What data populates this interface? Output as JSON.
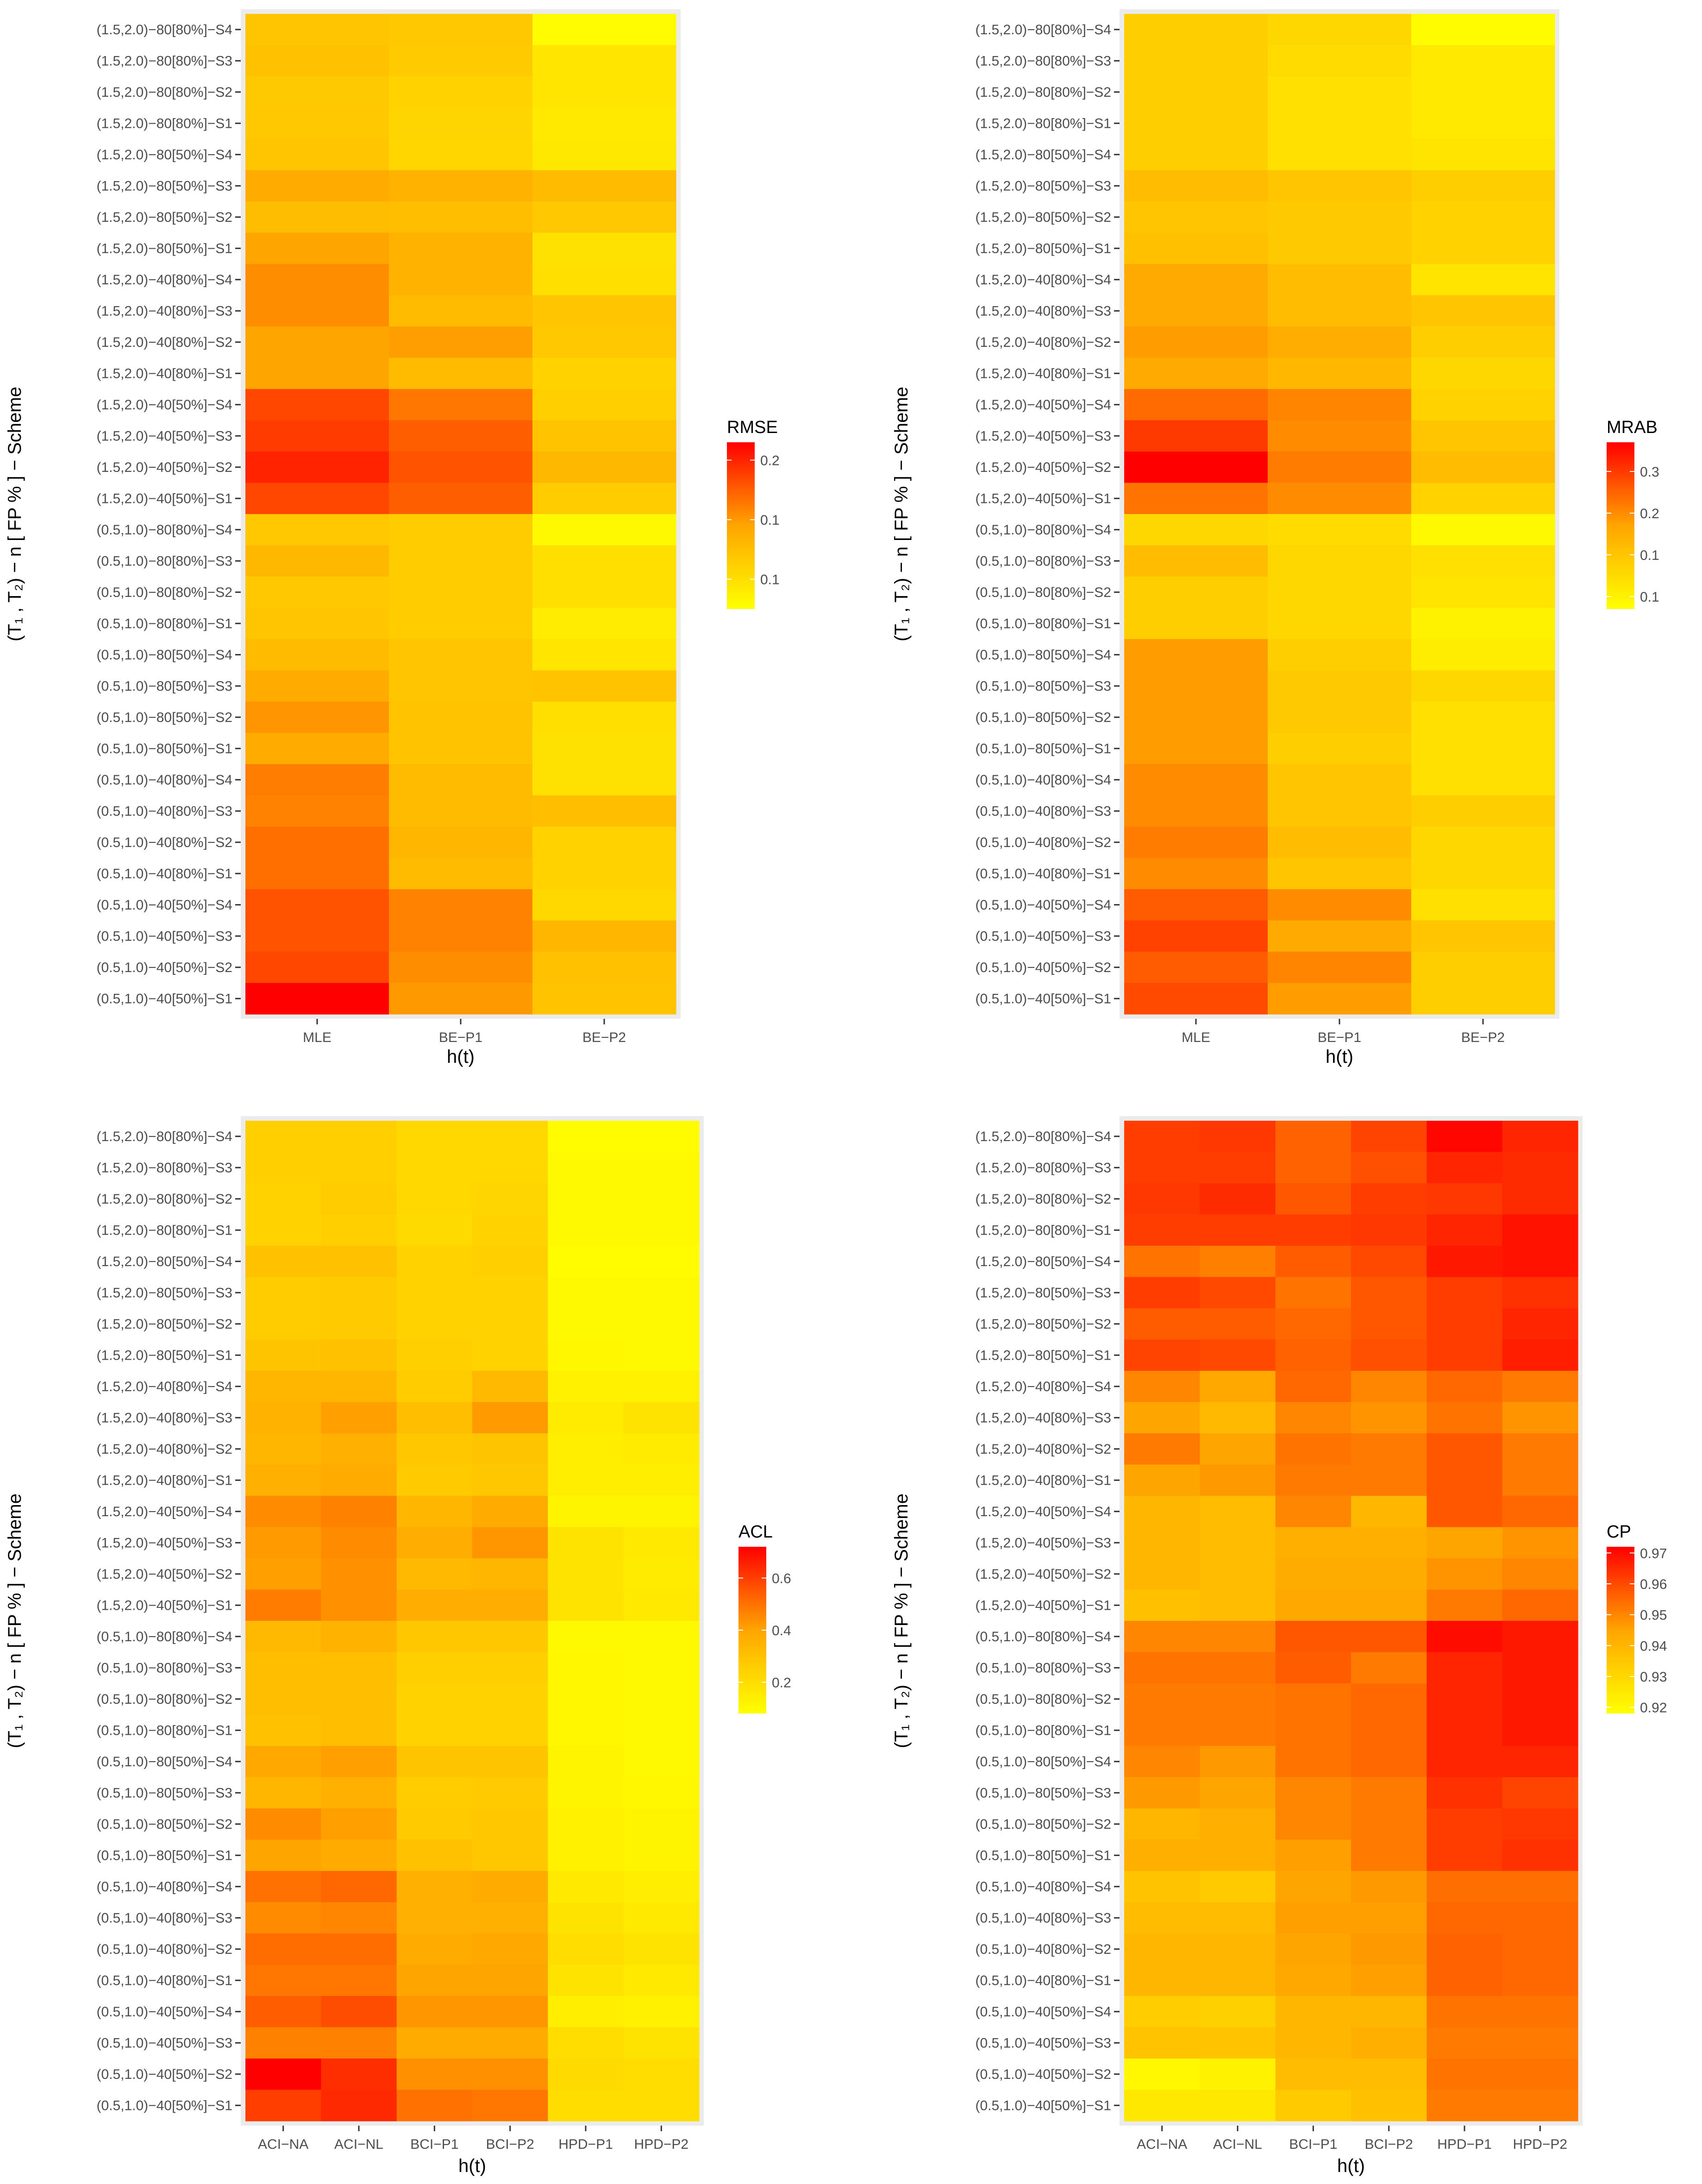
{
  "chart_data": [
    {
      "type": "heatmap",
      "title": "",
      "xlabel": "h(t)",
      "ylabel": "(T₁ , T₂) − n [ FP % ] − Scheme",
      "legend_title": "RMSE",
      "legend_placement": "right",
      "legend_ticks": [
        0.1,
        0.15,
        0.2
      ],
      "value_range": [
        0.075,
        0.215
      ],
      "x_categories": [
        "MLE",
        "BE−P1",
        "BE−P2"
      ],
      "y_categories": [
        "(1.5,2.0)−80[80%]−S4",
        "(1.5,2.0)−80[80%]−S3",
        "(1.5,2.0)−80[80%]−S2",
        "(1.5,2.0)−80[80%]−S1",
        "(1.5,2.0)−80[50%]−S4",
        "(1.5,2.0)−80[50%]−S3",
        "(1.5,2.0)−80[50%]−S2",
        "(1.5,2.0)−80[50%]−S1",
        "(1.5,2.0)−40[80%]−S4",
        "(1.5,2.0)−40[80%]−S3",
        "(1.5,2.0)−40[80%]−S2",
        "(1.5,2.0)−40[80%]−S1",
        "(1.5,2.0)−40[50%]−S4",
        "(1.5,2.0)−40[50%]−S3",
        "(1.5,2.0)−40[50%]−S2",
        "(1.5,2.0)−40[50%]−S1",
        "(0.5,1.0)−80[80%]−S4",
        "(0.5,1.0)−80[80%]−S3",
        "(0.5,1.0)−80[80%]−S2",
        "(0.5,1.0)−80[80%]−S1",
        "(0.5,1.0)−80[50%]−S4",
        "(0.5,1.0)−80[50%]−S3",
        "(0.5,1.0)−80[50%]−S2",
        "(0.5,1.0)−80[50%]−S1",
        "(0.5,1.0)−40[80%]−S4",
        "(0.5,1.0)−40[80%]−S3",
        "(0.5,1.0)−40[80%]−S2",
        "(0.5,1.0)−40[80%]−S1",
        "(0.5,1.0)−40[50%]−S4",
        "(0.5,1.0)−40[50%]−S3",
        "(0.5,1.0)−40[50%]−S2",
        "(0.5,1.0)−40[50%]−S1"
      ],
      "values": [
        [
          0.12,
          0.118,
          0.078
        ],
        [
          0.123,
          0.116,
          0.095
        ],
        [
          0.117,
          0.11,
          0.095
        ],
        [
          0.118,
          0.108,
          0.092
        ],
        [
          0.12,
          0.107,
          0.093
        ],
        [
          0.14,
          0.135,
          0.128
        ],
        [
          0.126,
          0.125,
          0.118
        ],
        [
          0.145,
          0.135,
          0.098
        ],
        [
          0.155,
          0.135,
          0.1
        ],
        [
          0.155,
          0.128,
          0.12
        ],
        [
          0.145,
          0.148,
          0.118
        ],
        [
          0.145,
          0.128,
          0.11
        ],
        [
          0.185,
          0.165,
          0.112
        ],
        [
          0.19,
          0.175,
          0.122
        ],
        [
          0.2,
          0.18,
          0.13
        ],
        [
          0.185,
          0.175,
          0.115
        ],
        [
          0.118,
          0.115,
          0.08
        ],
        [
          0.13,
          0.115,
          0.1
        ],
        [
          0.118,
          0.115,
          0.1
        ],
        [
          0.12,
          0.115,
          0.09
        ],
        [
          0.128,
          0.12,
          0.095
        ],
        [
          0.14,
          0.12,
          0.122
        ],
        [
          0.152,
          0.122,
          0.1
        ],
        [
          0.14,
          0.122,
          0.098
        ],
        [
          0.162,
          0.128,
          0.098
        ],
        [
          0.16,
          0.128,
          0.125
        ],
        [
          0.168,
          0.132,
          0.11
        ],
        [
          0.168,
          0.128,
          0.11
        ],
        [
          0.18,
          0.16,
          0.105
        ],
        [
          0.18,
          0.16,
          0.132
        ],
        [
          0.185,
          0.155,
          0.123
        ],
        [
          0.215,
          0.15,
          0.122
        ]
      ]
    },
    {
      "type": "heatmap",
      "title": "",
      "xlabel": "h(t)",
      "ylabel": "(T₁ , T₂) − n [ FP % ] − Scheme",
      "legend_title": "MRAB",
      "legend_placement": "right",
      "legend_ticks": [
        0.1,
        0.15,
        0.2,
        0.25
      ],
      "value_range": [
        0.085,
        0.285
      ],
      "x_categories": [
        "MLE",
        "BE−P1",
        "BE−P2"
      ],
      "y_categories": [
        "(1.5,2.0)−80[80%]−S4",
        "(1.5,2.0)−80[80%]−S3",
        "(1.5,2.0)−80[80%]−S2",
        "(1.5,2.0)−80[80%]−S1",
        "(1.5,2.0)−80[50%]−S4",
        "(1.5,2.0)−80[50%]−S3",
        "(1.5,2.0)−80[50%]−S2",
        "(1.5,2.0)−80[50%]−S1",
        "(1.5,2.0)−40[80%]−S4",
        "(1.5,2.0)−40[80%]−S3",
        "(1.5,2.0)−40[80%]−S2",
        "(1.5,2.0)−40[80%]−S1",
        "(1.5,2.0)−40[50%]−S4",
        "(1.5,2.0)−40[50%]−S3",
        "(1.5,2.0)−40[50%]−S2",
        "(1.5,2.0)−40[50%]−S1",
        "(0.5,1.0)−80[80%]−S4",
        "(0.5,1.0)−80[80%]−S3",
        "(0.5,1.0)−80[80%]−S2",
        "(0.5,1.0)−80[80%]−S1",
        "(0.5,1.0)−80[50%]−S4",
        "(0.5,1.0)−80[50%]−S3",
        "(0.5,1.0)−80[50%]−S2",
        "(0.5,1.0)−80[50%]−S1",
        "(0.5,1.0)−40[80%]−S4",
        "(0.5,1.0)−40[80%]−S3",
        "(0.5,1.0)−40[80%]−S2",
        "(0.5,1.0)−40[80%]−S1",
        "(0.5,1.0)−40[50%]−S4",
        "(0.5,1.0)−40[50%]−S3",
        "(0.5,1.0)−40[50%]−S2",
        "(0.5,1.0)−40[50%]−S1"
      ],
      "values": [
        [
          0.14,
          0.13,
          0.088
        ],
        [
          0.14,
          0.125,
          0.11
        ],
        [
          0.14,
          0.12,
          0.11
        ],
        [
          0.14,
          0.12,
          0.11
        ],
        [
          0.14,
          0.12,
          0.115
        ],
        [
          0.16,
          0.15,
          0.14
        ],
        [
          0.15,
          0.145,
          0.135
        ],
        [
          0.155,
          0.145,
          0.135
        ],
        [
          0.18,
          0.16,
          0.115
        ],
        [
          0.18,
          0.16,
          0.15
        ],
        [
          0.19,
          0.175,
          0.14
        ],
        [
          0.18,
          0.165,
          0.13
        ],
        [
          0.22,
          0.205,
          0.135
        ],
        [
          0.25,
          0.2,
          0.15
        ],
        [
          0.285,
          0.21,
          0.16
        ],
        [
          0.215,
          0.2,
          0.135
        ],
        [
          0.13,
          0.125,
          0.092
        ],
        [
          0.16,
          0.13,
          0.12
        ],
        [
          0.14,
          0.13,
          0.115
        ],
        [
          0.14,
          0.13,
          0.1
        ],
        [
          0.19,
          0.14,
          0.105
        ],
        [
          0.19,
          0.145,
          0.13
        ],
        [
          0.19,
          0.145,
          0.12
        ],
        [
          0.19,
          0.14,
          0.12
        ],
        [
          0.2,
          0.15,
          0.12
        ],
        [
          0.2,
          0.15,
          0.14
        ],
        [
          0.21,
          0.16,
          0.13
        ],
        [
          0.2,
          0.15,
          0.13
        ],
        [
          0.23,
          0.2,
          0.12
        ],
        [
          0.245,
          0.18,
          0.15
        ],
        [
          0.23,
          0.205,
          0.14
        ],
        [
          0.24,
          0.19,
          0.14
        ]
      ]
    },
    {
      "type": "heatmap",
      "title": "",
      "xlabel": "h(t)",
      "ylabel": "(T₁ , T₂) − n [ FP % ] − Scheme",
      "legend_title": "ACL",
      "legend_placement": "right",
      "legend_ticks": [
        0.2,
        0.4,
        0.6
      ],
      "value_range": [
        0.08,
        0.72
      ],
      "x_categories": [
        "ACI−NA",
        "ACI−NL",
        "BCI−P1",
        "BCI−P2",
        "HPD−P1",
        "HPD−P2"
      ],
      "y_categories": [
        "(1.5,2.0)−80[80%]−S4",
        "(1.5,2.0)−80[80%]−S3",
        "(1.5,2.0)−80[80%]−S2",
        "(1.5,2.0)−80[80%]−S1",
        "(1.5,2.0)−80[50%]−S4",
        "(1.5,2.0)−80[50%]−S3",
        "(1.5,2.0)−80[50%]−S2",
        "(1.5,2.0)−80[50%]−S1",
        "(1.5,2.0)−40[80%]−S4",
        "(1.5,2.0)−40[80%]−S3",
        "(1.5,2.0)−40[80%]−S2",
        "(1.5,2.0)−40[80%]−S1",
        "(1.5,2.0)−40[50%]−S4",
        "(1.5,2.0)−40[50%]−S3",
        "(1.5,2.0)−40[50%]−S2",
        "(1.5,2.0)−40[50%]−S1",
        "(0.5,1.0)−80[80%]−S4",
        "(0.5,1.0)−80[80%]−S3",
        "(0.5,1.0)−80[80%]−S2",
        "(0.5,1.0)−80[80%]−S1",
        "(0.5,1.0)−80[50%]−S4",
        "(0.5,1.0)−80[50%]−S3",
        "(0.5,1.0)−80[50%]−S2",
        "(0.5,1.0)−80[50%]−S1",
        "(0.5,1.0)−40[80%]−S4",
        "(0.5,1.0)−40[80%]−S3",
        "(0.5,1.0)−40[80%]−S2",
        "(0.5,1.0)−40[80%]−S1",
        "(0.5,1.0)−40[50%]−S4",
        "(0.5,1.0)−40[50%]−S3",
        "(0.5,1.0)−40[50%]−S2",
        "(0.5,1.0)−40[50%]−S1"
      ],
      "values": [
        [
          0.25,
          0.25,
          0.22,
          0.22,
          0.09,
          0.09
        ],
        [
          0.25,
          0.25,
          0.22,
          0.22,
          0.1,
          0.1
        ],
        [
          0.24,
          0.26,
          0.22,
          0.23,
          0.1,
          0.1
        ],
        [
          0.24,
          0.25,
          0.21,
          0.24,
          0.1,
          0.1
        ],
        [
          0.3,
          0.3,
          0.24,
          0.25,
          0.09,
          0.09
        ],
        [
          0.26,
          0.27,
          0.24,
          0.24,
          0.1,
          0.1
        ],
        [
          0.26,
          0.27,
          0.24,
          0.24,
          0.1,
          0.1
        ],
        [
          0.29,
          0.3,
          0.25,
          0.24,
          0.11,
          0.1
        ],
        [
          0.34,
          0.34,
          0.26,
          0.33,
          0.13,
          0.13
        ],
        [
          0.35,
          0.41,
          0.31,
          0.42,
          0.15,
          0.18
        ],
        [
          0.34,
          0.36,
          0.28,
          0.29,
          0.14,
          0.15
        ],
        [
          0.36,
          0.38,
          0.27,
          0.28,
          0.14,
          0.14
        ],
        [
          0.45,
          0.47,
          0.34,
          0.38,
          0.12,
          0.12
        ],
        [
          0.42,
          0.45,
          0.37,
          0.43,
          0.18,
          0.16
        ],
        [
          0.41,
          0.44,
          0.33,
          0.34,
          0.18,
          0.15
        ],
        [
          0.48,
          0.44,
          0.37,
          0.37,
          0.18,
          0.16
        ],
        [
          0.33,
          0.35,
          0.28,
          0.28,
          0.1,
          0.1
        ],
        [
          0.31,
          0.31,
          0.25,
          0.25,
          0.11,
          0.1
        ],
        [
          0.31,
          0.31,
          0.24,
          0.24,
          0.11,
          0.1
        ],
        [
          0.3,
          0.31,
          0.24,
          0.24,
          0.11,
          0.1
        ],
        [
          0.39,
          0.41,
          0.29,
          0.29,
          0.12,
          0.1
        ],
        [
          0.34,
          0.36,
          0.26,
          0.27,
          0.12,
          0.11
        ],
        [
          0.45,
          0.41,
          0.27,
          0.28,
          0.13,
          0.12
        ],
        [
          0.4,
          0.38,
          0.3,
          0.28,
          0.13,
          0.12
        ],
        [
          0.5,
          0.52,
          0.36,
          0.38,
          0.16,
          0.14
        ],
        [
          0.45,
          0.46,
          0.36,
          0.36,
          0.18,
          0.16
        ],
        [
          0.51,
          0.51,
          0.38,
          0.39,
          0.2,
          0.18
        ],
        [
          0.49,
          0.49,
          0.4,
          0.4,
          0.18,
          0.16
        ],
        [
          0.54,
          0.57,
          0.43,
          0.43,
          0.14,
          0.13
        ],
        [
          0.47,
          0.47,
          0.38,
          0.38,
          0.2,
          0.18
        ],
        [
          0.72,
          0.63,
          0.44,
          0.44,
          0.21,
          0.2
        ],
        [
          0.6,
          0.64,
          0.5,
          0.49,
          0.2,
          0.2
        ]
      ]
    },
    {
      "type": "heatmap",
      "title": "",
      "xlabel": "h(t)",
      "ylabel": "(T₁ , T₂) − n [ FP % ] − Scheme",
      "legend_title": "CP",
      "legend_placement": "right",
      "legend_ticks": [
        0.92,
        0.93,
        0.94,
        0.95,
        0.96,
        0.97
      ],
      "value_range": [
        0.918,
        0.972
      ],
      "x_categories": [
        "ACI−NA",
        "ACI−NL",
        "BCI−P1",
        "BCI−P2",
        "HPD−P1",
        "HPD−P2"
      ],
      "y_categories": [
        "(1.5,2.0)−80[80%]−S4",
        "(1.5,2.0)−80[80%]−S3",
        "(1.5,2.0)−80[80%]−S2",
        "(1.5,2.0)−80[80%]−S1",
        "(1.5,2.0)−80[50%]−S4",
        "(1.5,2.0)−80[50%]−S3",
        "(1.5,2.0)−80[50%]−S2",
        "(1.5,2.0)−80[50%]−S1",
        "(1.5,2.0)−40[80%]−S4",
        "(1.5,2.0)−40[80%]−S3",
        "(1.5,2.0)−40[80%]−S2",
        "(1.5,2.0)−40[80%]−S1",
        "(1.5,2.0)−40[50%]−S4",
        "(1.5,2.0)−40[50%]−S3",
        "(1.5,2.0)−40[50%]−S2",
        "(1.5,2.0)−40[50%]−S1",
        "(0.5,1.0)−80[80%]−S4",
        "(0.5,1.0)−80[80%]−S3",
        "(0.5,1.0)−80[80%]−S2",
        "(0.5,1.0)−80[80%]−S1",
        "(0.5,1.0)−80[50%]−S4",
        "(0.5,1.0)−80[50%]−S3",
        "(0.5,1.0)−80[50%]−S2",
        "(0.5,1.0)−80[50%]−S1",
        "(0.5,1.0)−40[80%]−S4",
        "(0.5,1.0)−40[80%]−S3",
        "(0.5,1.0)−40[80%]−S2",
        "(0.5,1.0)−40[80%]−S1",
        "(0.5,1.0)−40[50%]−S4",
        "(0.5,1.0)−40[50%]−S3",
        "(0.5,1.0)−40[50%]−S2",
        "(0.5,1.0)−40[50%]−S1"
      ],
      "values": [
        [
          0.962,
          0.963,
          0.956,
          0.961,
          0.971,
          0.966
        ],
        [
          0.962,
          0.962,
          0.956,
          0.959,
          0.966,
          0.965
        ],
        [
          0.963,
          0.965,
          0.958,
          0.962,
          0.963,
          0.965
        ],
        [
          0.962,
          0.962,
          0.962,
          0.963,
          0.966,
          0.969
        ],
        [
          0.953,
          0.951,
          0.957,
          0.96,
          0.968,
          0.969
        ],
        [
          0.962,
          0.96,
          0.953,
          0.958,
          0.962,
          0.964
        ],
        [
          0.957,
          0.957,
          0.955,
          0.958,
          0.962,
          0.966
        ],
        [
          0.961,
          0.96,
          0.956,
          0.959,
          0.962,
          0.967
        ],
        [
          0.95,
          0.944,
          0.955,
          0.95,
          0.955,
          0.952
        ],
        [
          0.945,
          0.939,
          0.95,
          0.948,
          0.953,
          0.948
        ],
        [
          0.952,
          0.945,
          0.953,
          0.952,
          0.958,
          0.952
        ],
        [
          0.945,
          0.947,
          0.952,
          0.952,
          0.958,
          0.952
        ],
        [
          0.94,
          0.938,
          0.95,
          0.94,
          0.958,
          0.955
        ],
        [
          0.94,
          0.938,
          0.942,
          0.942,
          0.945,
          0.948
        ],
        [
          0.94,
          0.938,
          0.943,
          0.943,
          0.948,
          0.95
        ],
        [
          0.937,
          0.938,
          0.944,
          0.944,
          0.952,
          0.955
        ],
        [
          0.95,
          0.95,
          0.958,
          0.958,
          0.97,
          0.968
        ],
        [
          0.953,
          0.953,
          0.957,
          0.952,
          0.966,
          0.968
        ],
        [
          0.952,
          0.952,
          0.953,
          0.955,
          0.966,
          0.968
        ],
        [
          0.952,
          0.952,
          0.953,
          0.955,
          0.966,
          0.968
        ],
        [
          0.95,
          0.947,
          0.953,
          0.955,
          0.966,
          0.966
        ],
        [
          0.947,
          0.945,
          0.95,
          0.952,
          0.964,
          0.961
        ],
        [
          0.94,
          0.942,
          0.95,
          0.952,
          0.962,
          0.963
        ],
        [
          0.942,
          0.942,
          0.946,
          0.952,
          0.962,
          0.964
        ],
        [
          0.936,
          0.934,
          0.945,
          0.947,
          0.954,
          0.954
        ],
        [
          0.938,
          0.938,
          0.946,
          0.946,
          0.955,
          0.955
        ],
        [
          0.94,
          0.94,
          0.945,
          0.947,
          0.956,
          0.955
        ],
        [
          0.94,
          0.94,
          0.944,
          0.946,
          0.956,
          0.955
        ],
        [
          0.933,
          0.932,
          0.94,
          0.94,
          0.953,
          0.953
        ],
        [
          0.936,
          0.936,
          0.94,
          0.942,
          0.952,
          0.952
        ],
        [
          0.92,
          0.922,
          0.938,
          0.938,
          0.953,
          0.953
        ],
        [
          0.925,
          0.925,
          0.934,
          0.937,
          0.952,
          0.952
        ]
      ]
    }
  ]
}
